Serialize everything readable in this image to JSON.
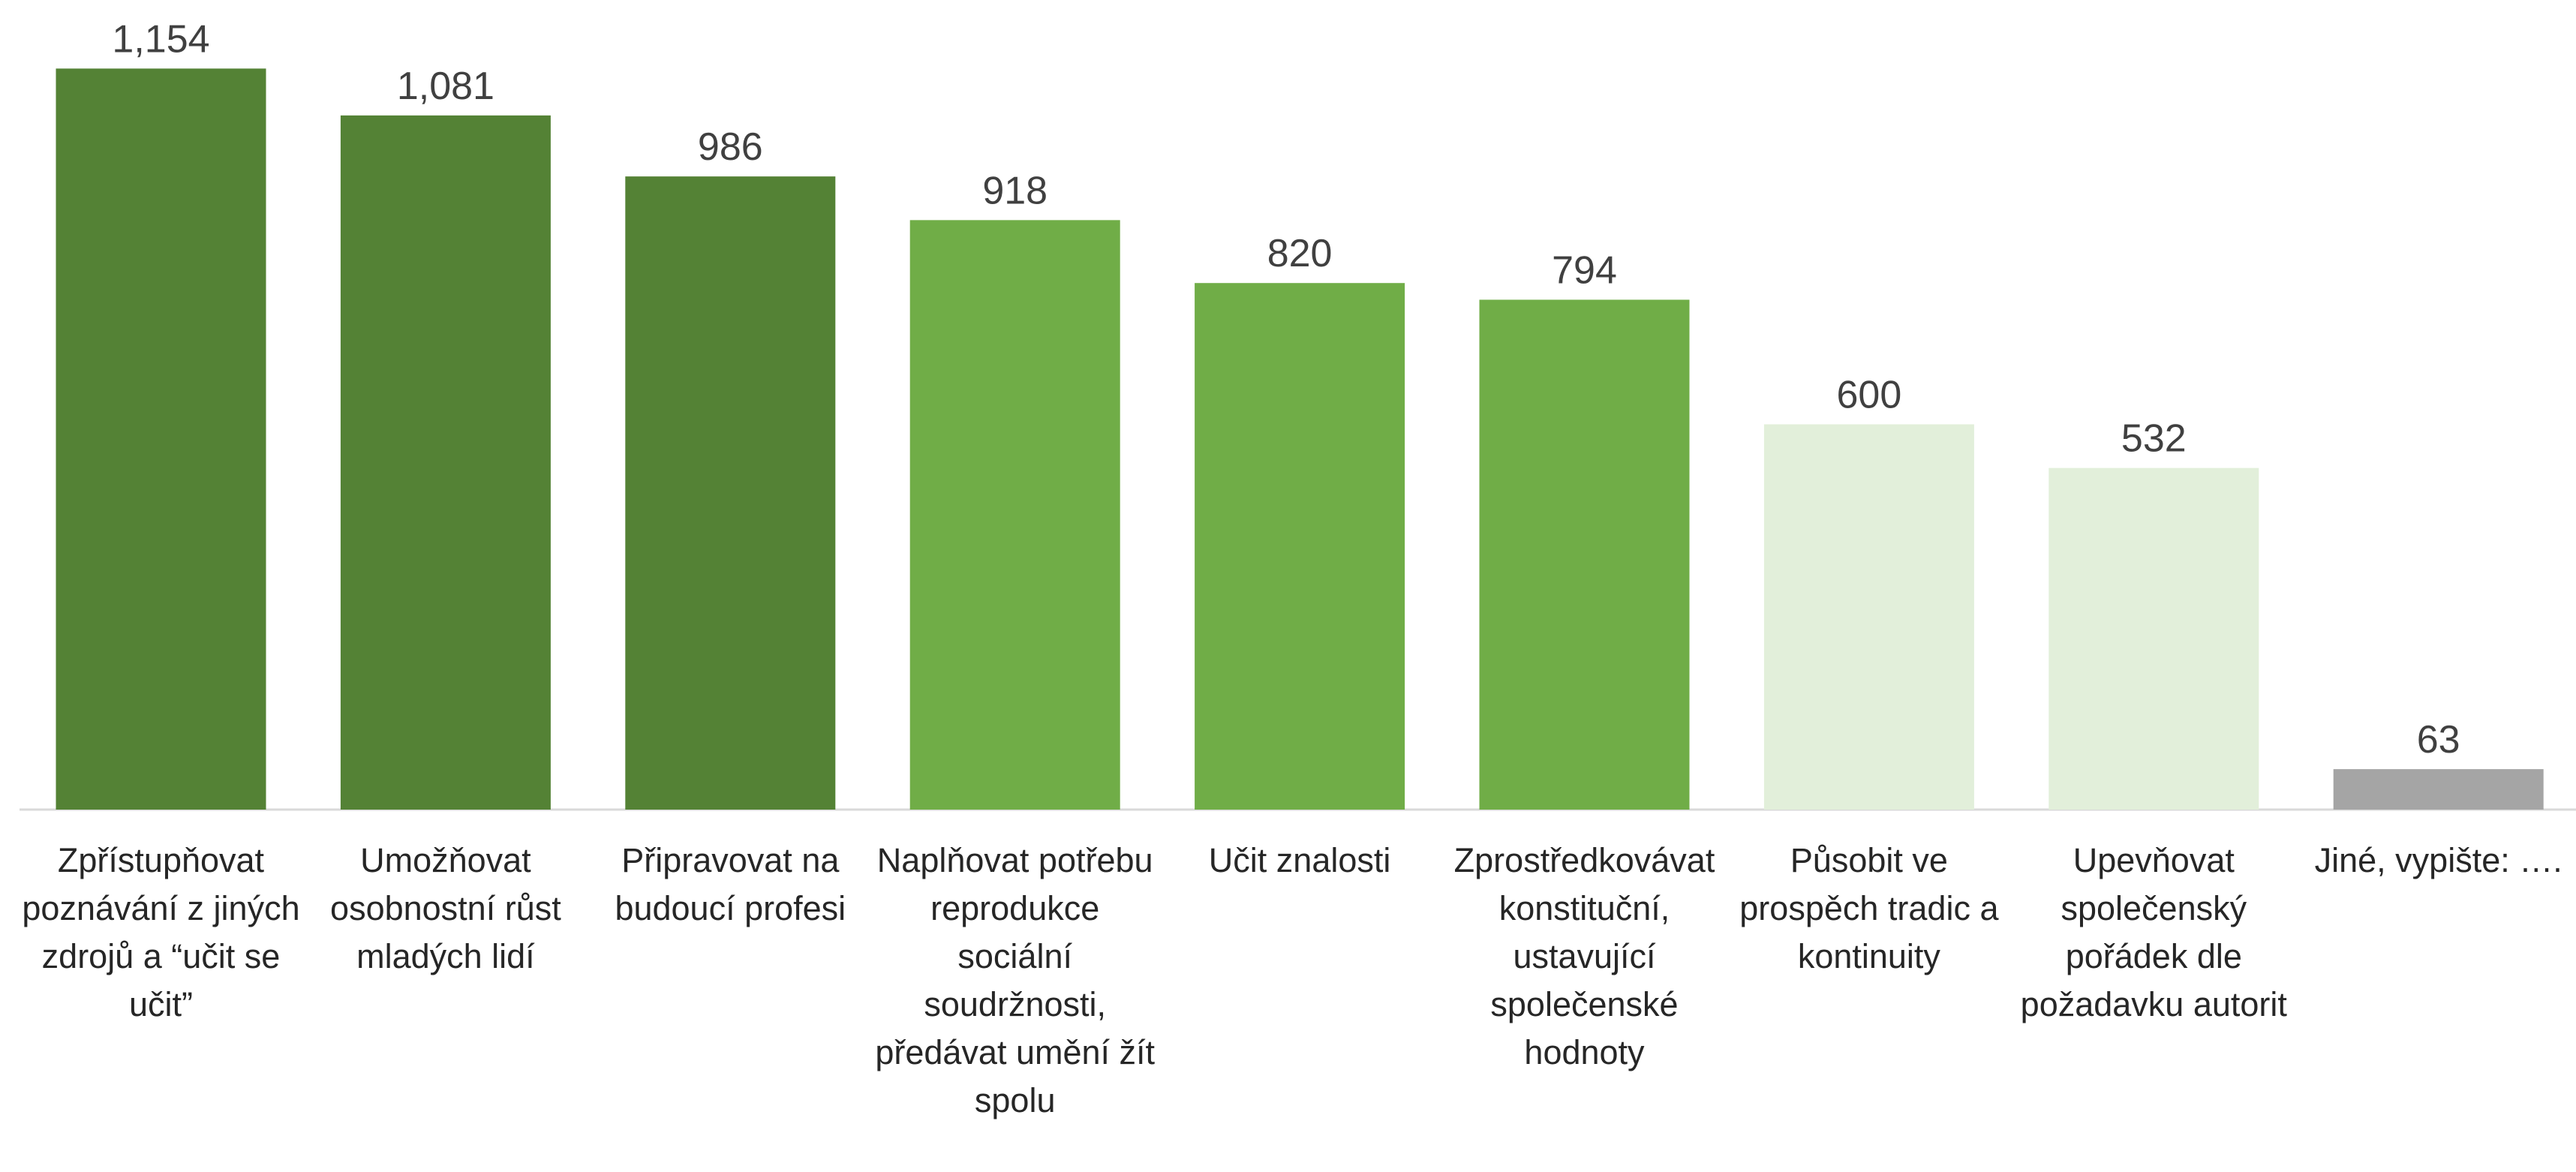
{
  "chart_data": {
    "type": "bar",
    "categories": [
      "Zpřístupňovat poznávání z jiných zdrojů a “učit se učit”",
      "Umožňovat osobnostní růst mladých lidí",
      "Připravovat na budoucí profesi",
      "Naplňovat potřebu reprodukce sociální soudržnosti, předávat umění žít spolu",
      "Učit znalosti",
      "Zprostředkovávat konstituční, ustavující společenské hodnoty",
      "Působit ve prospěch tradic a kontinuity",
      "Upevňovat společenský pořádek dle požadavku autorit",
      "Jiné, vypište: …."
    ],
    "values": [
      1154,
      1081,
      986,
      918,
      820,
      794,
      600,
      532,
      63
    ],
    "value_labels": [
      "1,154",
      "1,081",
      "986",
      "918",
      "820",
      "794",
      "600",
      "532",
      "63"
    ],
    "colors": [
      "#548235",
      "#548235",
      "#548235",
      "#70ad47",
      "#70ad47",
      "#70ad47",
      "#e2efda",
      "#e2efda",
      "#a5a5a5"
    ],
    "ylim": [
      0,
      1200
    ]
  }
}
